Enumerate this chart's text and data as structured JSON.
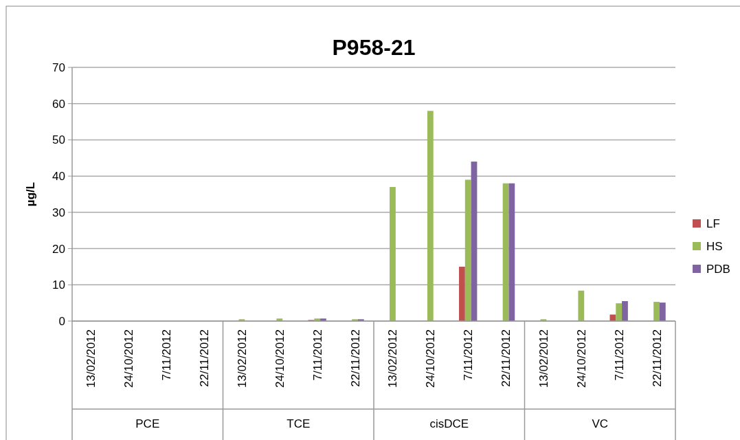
{
  "chart_data": {
    "type": "bar",
    "title": "P958-21",
    "ylabel": "µg/L",
    "categories": [
      "13/02/2012",
      "24/10/2012",
      "7/11/2012",
      "22/11/2012",
      "13/02/2012",
      "24/10/2012",
      "7/11/2012",
      "22/11/2012",
      "13/02/2012",
      "24/10/2012",
      "7/11/2012",
      "22/11/2012",
      "13/02/2012",
      "24/10/2012",
      "7/11/2012",
      "22/11/2012"
    ],
    "annotations": [
      "PCE",
      "TCE",
      "cisDCE",
      "VC"
    ],
    "series": [
      {
        "name": "LF",
        "color": "#c0504d",
        "values": [
          null,
          null,
          null,
          null,
          null,
          null,
          0.3,
          null,
          null,
          null,
          15,
          null,
          null,
          null,
          1.8,
          null
        ]
      },
      {
        "name": "HS",
        "color": "#9bbb59",
        "values": [
          null,
          null,
          null,
          null,
          0.5,
          0.7,
          0.7,
          0.5,
          37,
          58,
          39,
          38,
          0.5,
          8.4,
          4.9,
          5.3
        ]
      },
      {
        "name": "PDB",
        "color": "#8064a2",
        "values": [
          null,
          null,
          null,
          null,
          null,
          null,
          0.7,
          0.5,
          null,
          null,
          44,
          38,
          null,
          null,
          5.5,
          5.1
        ]
      }
    ],
    "ylim": [
      0,
      70
    ],
    "yticks": [
      0,
      10,
      20,
      30,
      40,
      50,
      60,
      70
    ],
    "grid": "y",
    "legend": "right"
  }
}
